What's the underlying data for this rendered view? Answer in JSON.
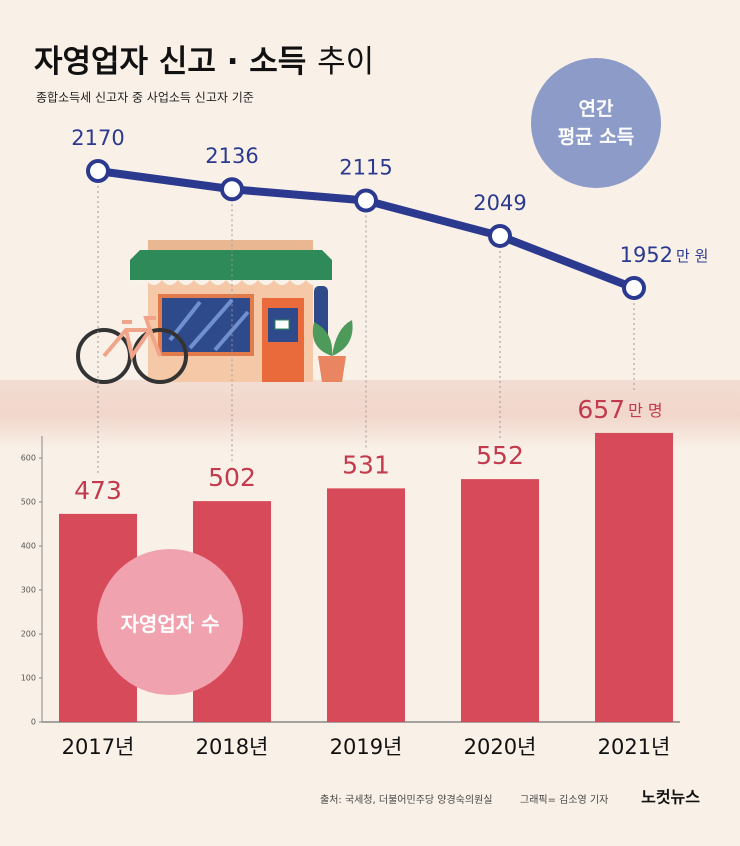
{
  "chart_data": {
    "type": "bar",
    "title": "자영업자 신고 · 소득",
    "title_suffix": "추이",
    "subtitle": "종합소득세 신고자 중 사업소득 신고자 기준",
    "categories": [
      "2017년",
      "2018년",
      "2019년",
      "2020년",
      "2021년"
    ],
    "ylim": [
      0,
      650
    ],
    "yticks": [
      0,
      100,
      200,
      300,
      400,
      500,
      600
    ],
    "series": [
      {
        "name": "자영업자 수",
        "type": "bar",
        "color": "#d64a5a",
        "label_color": "#c23a4b",
        "unit": "만 명",
        "values": [
          473,
          502,
          531,
          552,
          657
        ]
      },
      {
        "name": "연간\n평균 소득",
        "type": "line",
        "color": "#2b3a8f",
        "unit": "만 원",
        "values": [
          2170,
          2136,
          2115,
          2049,
          1952
        ]
      }
    ],
    "source": "출처: 국세청, 더불어민주당 양경숙의원실",
    "credit": "그래픽= 김소영 기자",
    "logo": "노컷뉴스"
  }
}
